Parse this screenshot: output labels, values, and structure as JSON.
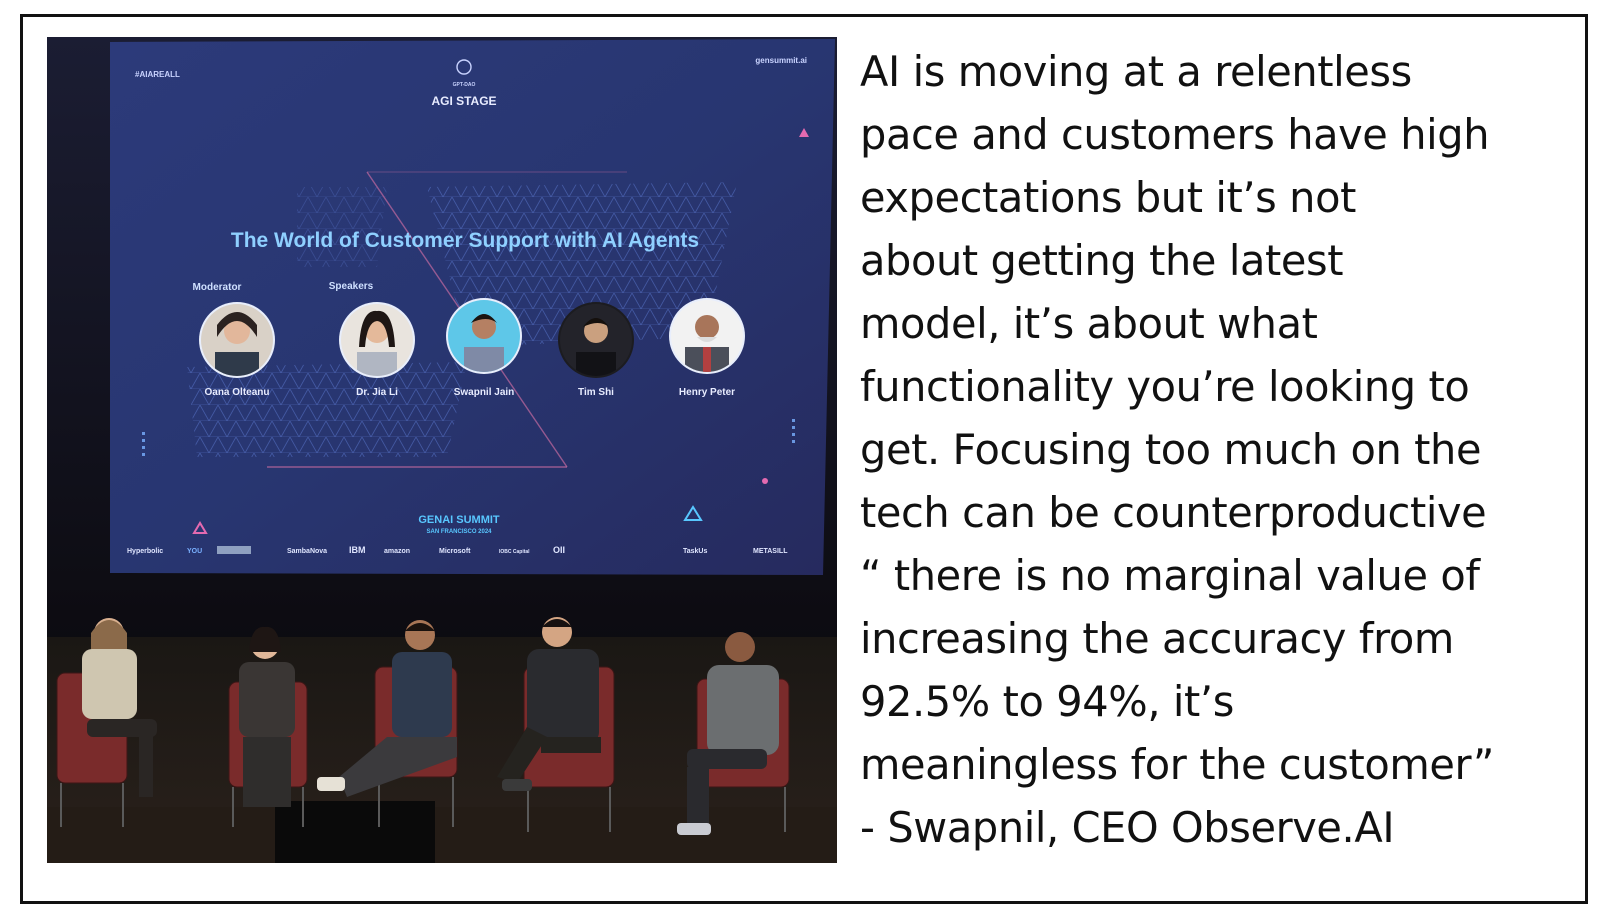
{
  "photo": {
    "screen": {
      "hashtag": "#AIAREALL",
      "url": "gensummit.ai",
      "logo_text": "GPT-DAO",
      "stage": "AGI STAGE",
      "title": "The World of Customer Support with AI Agents",
      "moderator_label": "Moderator",
      "speakers_label": "Speakers",
      "people": [
        "Oana Olteanu",
        "Dr. Jia Li",
        "Swapnil Jain",
        "Tim Shi",
        "Henry Peter"
      ],
      "event_name": "GENAI SUMMIT",
      "event_sub": "SAN FRANCISCO 2024",
      "sponsors": [
        "Hyperbolic",
        "YOU",
        "SambaNova",
        "IBM",
        "amazon",
        "Microsoft",
        "IOBC Capital",
        "OII",
        "TaskUs",
        "METASILL"
      ]
    }
  },
  "quote": {
    "lines": [
      "AI is moving at a relentless",
      "pace and customers have high",
      "expectations but it’s not",
      "about getting the latest",
      "model, it’s about what",
      "functionality you’re looking to",
      "get. Focusing too much on the",
      "tech can be counterproductive",
      "“ there is no marginal value of",
      "increasing the accuracy from",
      "92.5% to 94%, it’s",
      "meaningless for the customer”",
      "- Swapnil, CEO Observe.AI"
    ]
  }
}
